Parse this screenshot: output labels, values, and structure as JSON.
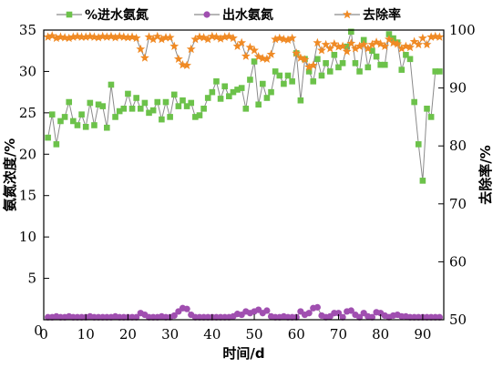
{
  "chart_data": {
    "type": "line",
    "title": "",
    "xlabel": "时间/d",
    "ylabel_left": "氨氮浓度/%",
    "ylabel_right": "去除率/%",
    "xlim": [
      0,
      95
    ],
    "ylim_left": [
      0,
      35
    ],
    "ylim_right": [
      50,
      100
    ],
    "xticks": [
      0,
      10,
      20,
      30,
      40,
      50,
      60,
      70,
      80,
      90
    ],
    "yticks_left": [
      5,
      10,
      15,
      20,
      25,
      30,
      35
    ],
    "yticks_right": [
      50,
      60,
      70,
      80,
      90,
      100
    ],
    "grid": false,
    "legend_position": "top",
    "x": [
      1,
      2,
      3,
      4,
      5,
      6,
      7,
      8,
      9,
      10,
      11,
      12,
      13,
      14,
      15,
      16,
      17,
      18,
      19,
      20,
      21,
      22,
      23,
      24,
      25,
      26,
      27,
      28,
      29,
      30,
      31,
      32,
      33,
      34,
      35,
      36,
      37,
      38,
      39,
      40,
      41,
      42,
      43,
      44,
      45,
      46,
      47,
      48,
      49,
      50,
      51,
      52,
      53,
      54,
      55,
      56,
      57,
      58,
      59,
      60,
      61,
      62,
      63,
      64,
      65,
      66,
      67,
      68,
      69,
      70,
      71,
      72,
      73,
      74,
      75,
      76,
      77,
      78,
      79,
      80,
      81,
      82,
      83,
      84,
      85,
      86,
      87,
      88,
      89,
      90,
      91,
      92,
      93,
      94
    ],
    "series": [
      {
        "name": "%进水氨氮",
        "axis": "left",
        "color": "#6cc24a",
        "marker": "square",
        "values": [
          22.0,
          24.8,
          21.2,
          24.0,
          24.5,
          26.3,
          24.0,
          23.5,
          24.8,
          23.3,
          26.2,
          23.5,
          26.0,
          25.8,
          23.2,
          28.4,
          24.5,
          25.2,
          25.5,
          27.3,
          25.5,
          26.8,
          25.5,
          26.2,
          25.0,
          25.3,
          26.3,
          24.2,
          26.3,
          24.5,
          27.2,
          25.8,
          26.5,
          25.8,
          26.2,
          24.5,
          24.7,
          25.5,
          26.8,
          27.5,
          28.8,
          26.7,
          28.2,
          27.0,
          27.5,
          27.8,
          28.0,
          25.5,
          29.0,
          31.2,
          26.0,
          28.5,
          26.8,
          27.5,
          30.0,
          29.5,
          28.5,
          29.5,
          28.8,
          32.2,
          26.5,
          31.5,
          30.0,
          28.8,
          31.5,
          29.5,
          31.0,
          30.0,
          32.0,
          30.5,
          31.0,
          33.0,
          34.8,
          31.0,
          30.0,
          33.8,
          30.5,
          32.5,
          31.8,
          30.8,
          30.8,
          34.5,
          34.0,
          33.5,
          30.2,
          32.0,
          31.5,
          26.3,
          21.2,
          16.8,
          25.5,
          24.5,
          30.0,
          30.0
        ]
      },
      {
        "name": "出水氨氮",
        "axis": "left",
        "color": "#a04fb0",
        "marker": "circle",
        "values": [
          0.3,
          0.3,
          0.4,
          0.3,
          0.3,
          0.4,
          0.3,
          0.3,
          0.3,
          0.3,
          0.4,
          0.3,
          0.3,
          0.3,
          0.3,
          0.3,
          0.4,
          0.3,
          0.3,
          0.3,
          0.3,
          0.3,
          0.8,
          0.6,
          0.3,
          0.3,
          0.3,
          0.4,
          0.3,
          0.3,
          0.5,
          1.0,
          1.4,
          1.3,
          0.6,
          0.3,
          0.3,
          0.3,
          0.3,
          0.3,
          0.3,
          0.3,
          0.3,
          0.3,
          0.4,
          0.7,
          0.6,
          1.0,
          0.8,
          1.0,
          1.2,
          0.8,
          1.1,
          0.4,
          0.3,
          0.3,
          0.4,
          0.3,
          0.3,
          0.3,
          1.0,
          0.6,
          0.8,
          1.4,
          1.5,
          0.5,
          0.3,
          0.4,
          0.8,
          0.8,
          0.3,
          1.0,
          1.1,
          0.6,
          0.3,
          0.8,
          0.4,
          0.3,
          0.9,
          0.8,
          0.5,
          0.3,
          0.5,
          0.6,
          0.4,
          0.4,
          0.3,
          0.3,
          0.3,
          0.3,
          0.3,
          0.3,
          0.3,
          0.3
        ]
      },
      {
        "name": "去除率",
        "axis": "right",
        "color": "#f08a24",
        "marker": "star",
        "values": [
          98.8,
          99.0,
          98.6,
          98.8,
          98.7,
          98.6,
          98.8,
          98.9,
          98.8,
          98.8,
          98.9,
          98.8,
          98.7,
          98.9,
          98.8,
          98.9,
          98.7,
          98.9,
          98.8,
          98.7,
          98.8,
          98.6,
          96.7,
          95.2,
          98.8,
          98.4,
          98.9,
          98.4,
          98.7,
          98.7,
          97.2,
          95.0,
          94.0,
          93.9,
          96.7,
          98.4,
          98.8,
          98.7,
          98.4,
          98.9,
          98.8,
          98.5,
          98.8,
          98.9,
          98.6,
          97.2,
          97.8,
          95.5,
          97.0,
          96.5,
          95.4,
          95.1,
          95.0,
          95.8,
          98.4,
          98.6,
          98.4,
          98.3,
          98.6,
          96.0,
          95.2,
          94.9,
          93.6,
          93.9,
          97.8,
          96.5,
          97.5,
          96.8,
          97.6,
          97.1,
          97.2,
          96.3,
          97.7,
          96.8,
          97.2,
          97.5,
          96.8,
          97.5,
          97.9,
          97.6,
          97.2,
          98.4,
          97.8,
          97.6,
          96.8,
          97.2,
          97.0,
          98.0,
          97.5,
          98.6,
          97.5,
          98.8,
          98.9,
          98.8
        ]
      }
    ]
  }
}
